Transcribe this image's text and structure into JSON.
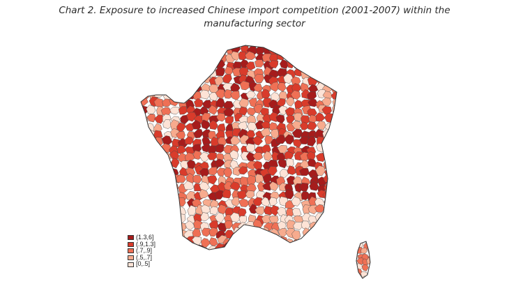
{
  "title": {
    "line1": "Chart 2. Exposure to increased Chinese import competition (2001-2007) within the",
    "line2": "manufacturing sector"
  },
  "legend": [
    {
      "label": "(1.3,6]",
      "color": "#a61c1c"
    },
    {
      "label": "(.9,1.3]",
      "color": "#d93b2b"
    },
    {
      "label": "(.7,.9]",
      "color": "#ef7055"
    },
    {
      "label": "(.5,.7]",
      "color": "#f7ab8e"
    },
    {
      "label": "[0,.5]",
      "color": "#fde3d6"
    }
  ]
}
